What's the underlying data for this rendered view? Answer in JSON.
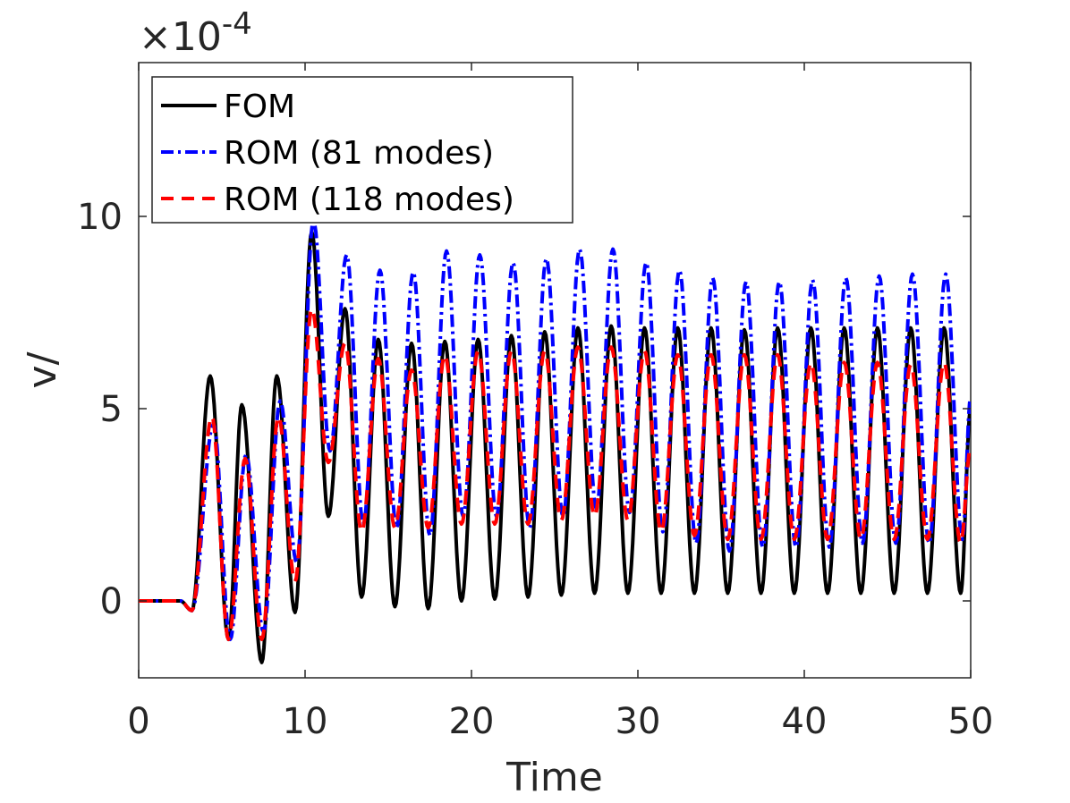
{
  "chart_data": {
    "type": "line",
    "xlabel": "Time",
    "ylabel": "v/",
    "exponent_label": "×10",
    "exponent_power": "-4",
    "xlim": [
      0,
      50
    ],
    "ylim": [
      -2,
      14
    ],
    "x_ticks": [
      0,
      10,
      20,
      30,
      40,
      50
    ],
    "x_tick_labels": [
      "0",
      "10",
      "20",
      "30",
      "40",
      "50"
    ],
    "y_ticks": [
      0,
      5,
      10
    ],
    "y_tick_labels": [
      "0",
      "5",
      "10"
    ],
    "grid": false,
    "legend_position": "top-left",
    "series": [
      {
        "name": "FOM",
        "color": "#000000",
        "dash": "solid",
        "peaks": [
          [
            4.3,
            5.85
          ],
          [
            6.2,
            5.1
          ],
          [
            8.3,
            5.85
          ],
          [
            10.4,
            9.6
          ],
          [
            12.4,
            7.6
          ],
          [
            14.4,
            6.8
          ],
          [
            16.4,
            6.7
          ],
          [
            18.4,
            6.75
          ],
          [
            20.4,
            6.8
          ],
          [
            22.4,
            6.9
          ],
          [
            24.4,
            7.0
          ],
          [
            26.4,
            7.1
          ],
          [
            28.4,
            7.15
          ],
          [
            30.4,
            7.1
          ],
          [
            32.4,
            7.1
          ],
          [
            34.4,
            7.1
          ],
          [
            36.4,
            7.05
          ],
          [
            38.4,
            7.1
          ],
          [
            40.4,
            7.1
          ],
          [
            42.4,
            7.1
          ],
          [
            44.4,
            7.1
          ],
          [
            46.4,
            7.1
          ],
          [
            48.4,
            7.1
          ]
        ],
        "troughs": [
          [
            5.4,
            -1.0
          ],
          [
            7.4,
            -1.6
          ],
          [
            9.4,
            -0.3
          ],
          [
            11.4,
            2.2
          ],
          [
            13.4,
            0.1
          ],
          [
            15.4,
            -0.15
          ],
          [
            17.4,
            -0.2
          ],
          [
            19.4,
            0.0
          ],
          [
            21.4,
            0.05
          ],
          [
            23.4,
            0.1
          ],
          [
            25.4,
            0.15
          ],
          [
            27.4,
            0.2
          ],
          [
            29.4,
            0.2
          ],
          [
            31.4,
            0.2
          ],
          [
            33.4,
            0.2
          ],
          [
            35.4,
            0.2
          ],
          [
            37.4,
            0.2
          ],
          [
            39.4,
            0.2
          ],
          [
            41.4,
            0.2
          ],
          [
            43.4,
            0.2
          ],
          [
            45.4,
            0.2
          ],
          [
            47.4,
            0.2
          ],
          [
            49.4,
            0.2
          ]
        ],
        "end_value": 5.0
      },
      {
        "name": "ROM (81 modes)",
        "color": "#0000ff",
        "dash": "dashdot",
        "peaks": [
          [
            4.5,
            4.6
          ],
          [
            6.45,
            3.8
          ],
          [
            8.5,
            5.2
          ],
          [
            10.5,
            9.9
          ],
          [
            12.5,
            9.0
          ],
          [
            14.5,
            8.6
          ],
          [
            16.5,
            8.55
          ],
          [
            18.5,
            9.1
          ],
          [
            20.5,
            9.0
          ],
          [
            22.5,
            8.8
          ],
          [
            24.5,
            8.9
          ],
          [
            26.5,
            9.15
          ],
          [
            28.5,
            9.15
          ],
          [
            30.5,
            8.8
          ],
          [
            32.5,
            8.6
          ],
          [
            34.5,
            8.4
          ],
          [
            36.5,
            8.3
          ],
          [
            38.5,
            8.3
          ],
          [
            40.5,
            8.35
          ],
          [
            42.5,
            8.4
          ],
          [
            44.5,
            8.45
          ],
          [
            46.5,
            8.5
          ],
          [
            48.5,
            8.5
          ]
        ],
        "troughs": [
          [
            5.5,
            -1.0
          ],
          [
            7.5,
            -0.8
          ],
          [
            9.5,
            1.0
          ],
          [
            11.5,
            3.9
          ],
          [
            13.5,
            2.0
          ],
          [
            15.5,
            1.9
          ],
          [
            17.5,
            1.7
          ],
          [
            19.5,
            2.2
          ],
          [
            21.5,
            2.2
          ],
          [
            23.5,
            1.9
          ],
          [
            25.5,
            2.2
          ],
          [
            27.5,
            2.4
          ],
          [
            29.5,
            2.3
          ],
          [
            31.5,
            1.8
          ],
          [
            33.5,
            1.5
          ],
          [
            35.5,
            1.3
          ],
          [
            37.5,
            1.4
          ],
          [
            39.5,
            1.4
          ],
          [
            41.5,
            1.4
          ],
          [
            43.5,
            1.5
          ],
          [
            45.5,
            1.5
          ],
          [
            47.5,
            1.5
          ],
          [
            49.5,
            1.6
          ]
        ],
        "end_value": 5.3
      },
      {
        "name": "ROM (118 modes)",
        "color": "#ff0000",
        "dash": "dashed",
        "peaks": [
          [
            4.4,
            4.8
          ],
          [
            6.4,
            3.7
          ],
          [
            8.4,
            4.8
          ],
          [
            10.4,
            7.6
          ],
          [
            12.4,
            6.7
          ],
          [
            14.4,
            6.3
          ],
          [
            16.4,
            6.0
          ],
          [
            18.4,
            6.4
          ],
          [
            20.4,
            6.5
          ],
          [
            22.4,
            6.5
          ],
          [
            24.4,
            6.5
          ],
          [
            26.4,
            6.6
          ],
          [
            28.4,
            6.6
          ],
          [
            30.4,
            6.5
          ],
          [
            32.4,
            6.4
          ],
          [
            34.4,
            6.4
          ],
          [
            36.4,
            6.4
          ],
          [
            38.4,
            6.4
          ],
          [
            40.4,
            6.2
          ],
          [
            42.4,
            6.2
          ],
          [
            44.4,
            6.2
          ],
          [
            46.4,
            6.15
          ],
          [
            48.4,
            6.2
          ]
        ],
        "troughs": [
          [
            5.4,
            -1.0
          ],
          [
            7.4,
            -1.0
          ],
          [
            9.4,
            0.5
          ],
          [
            11.4,
            3.6
          ],
          [
            13.4,
            1.8
          ],
          [
            15.4,
            1.9
          ],
          [
            17.4,
            1.9
          ],
          [
            19.4,
            2.0
          ],
          [
            21.4,
            2.0
          ],
          [
            23.4,
            2.0
          ],
          [
            25.4,
            2.1
          ],
          [
            27.4,
            2.2
          ],
          [
            29.4,
            2.1
          ],
          [
            31.4,
            1.8
          ],
          [
            33.4,
            1.7
          ],
          [
            35.4,
            1.6
          ],
          [
            37.4,
            1.6
          ],
          [
            39.4,
            1.6
          ],
          [
            41.4,
            1.6
          ],
          [
            43.4,
            1.6
          ],
          [
            45.4,
            1.6
          ],
          [
            47.4,
            1.6
          ],
          [
            49.4,
            1.5
          ]
        ],
        "end_value": 4.0
      }
    ]
  }
}
